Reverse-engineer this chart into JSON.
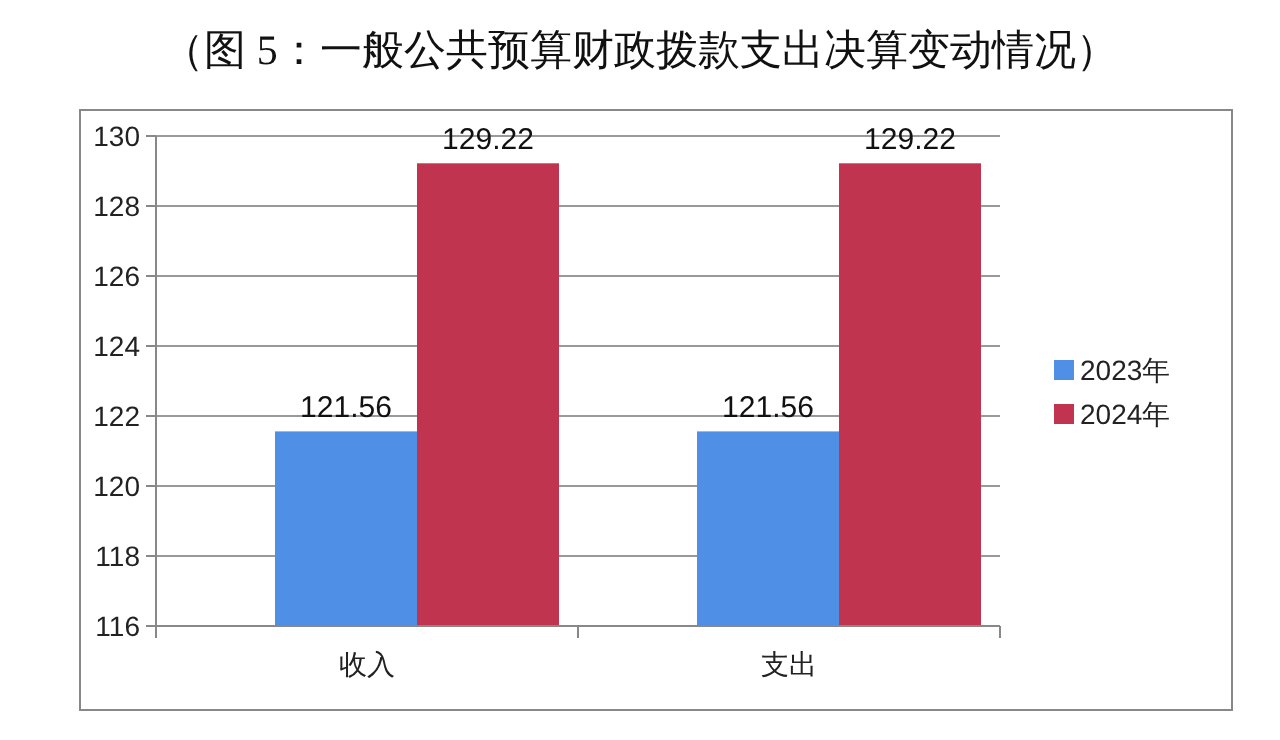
{
  "chart_data": {
    "type": "bar",
    "title": "（图 5：一般公共预算财政拨款支出决算变动情况）",
    "categories": [
      "收入",
      "支出"
    ],
    "series": [
      {
        "name": "2023年",
        "color": "#4f8fe6",
        "values": [
          121.56,
          121.56
        ]
      },
      {
        "name": "2024年",
        "color": "#c0344f",
        "values": [
          129.22,
          129.22
        ]
      }
    ],
    "ylim": [
      116,
      130
    ],
    "yticks": [
      116,
      118,
      120,
      122,
      124,
      126,
      128,
      130
    ],
    "grid": "y",
    "legend": "right",
    "data_labels": true
  }
}
